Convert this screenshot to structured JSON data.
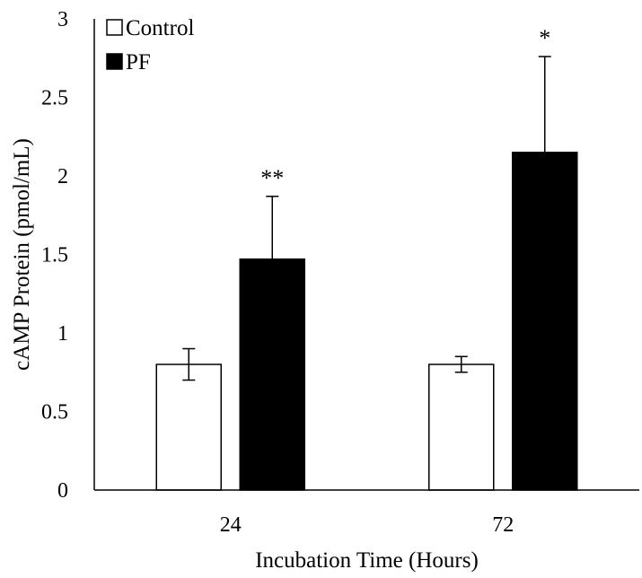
{
  "chart_data": {
    "type": "bar",
    "title": "",
    "xlabel": "Incubation Time (Hours)",
    "ylabel": "cAMP Protein (pmol/mL)",
    "categories": [
      "24",
      "72"
    ],
    "ylim": [
      0,
      3
    ],
    "yticks": [
      0,
      0.5,
      1,
      1.5,
      2,
      2.5,
      3
    ],
    "ytick_labels": [
      "0",
      "0.5",
      "1",
      "1.5",
      "2",
      "2.5",
      "3"
    ],
    "grid": false,
    "legend_position": "top-left",
    "series": [
      {
        "name": "Control",
        "color": "#ffffff",
        "edge_color": "#000000",
        "values": [
          0.8,
          0.8
        ],
        "errors": [
          0.1,
          0.05
        ],
        "significance": [
          "",
          ""
        ]
      },
      {
        "name": "PF",
        "color": "#000000",
        "edge_color": "#000000",
        "values": [
          1.47,
          2.15
        ],
        "errors": [
          0.4,
          0.61
        ],
        "significance": [
          "**",
          "*"
        ]
      }
    ]
  }
}
